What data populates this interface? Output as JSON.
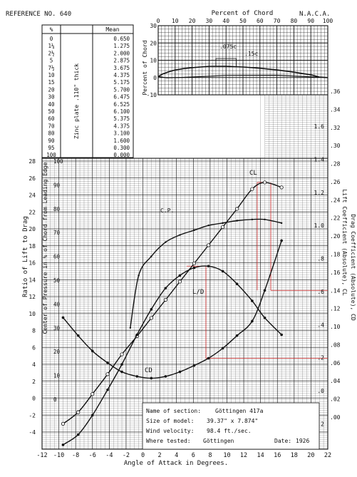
{
  "header": {
    "reference": "REFERENCE NO. 640",
    "agency": "N.A.C.A.",
    "profile_axis_title": "Percent of Chord",
    "profile_ylabel": "Percent of Chord"
  },
  "section_table": {
    "col_station": "%",
    "col_mean": "Mean",
    "stations": [
      "0",
      "1¼",
      "2½",
      "5",
      "7½",
      "10",
      "15",
      "20",
      "30",
      "40",
      "50",
      "60",
      "70",
      "80",
      "90",
      "95",
      "100"
    ],
    "means": [
      "0.650",
      "1.275",
      "2.000",
      "2.875",
      "3.675",
      "4.375",
      "5.175",
      "5.700",
      "6.475",
      "6.525",
      "6.100",
      "5.375",
      "4.375",
      "3.100",
      "1.600",
      "0.300",
      "0.000"
    ],
    "note": "Zinc plate .110\" thick"
  },
  "profile_annotations": {
    "thickness_1": ".075c",
    "thickness_2": ".15c"
  },
  "axis_titles": {
    "x": "Angle of Attack in Degrees.",
    "left_outer": "Ratio of Lift to Drag",
    "left_inner": "Center of Pressure in % of Chord from Leading Edge",
    "right_cl": "Lift Coefficient (Absolute), CL",
    "right_cd": "Drag Coefficient (Absolute), CD"
  },
  "curve_labels": {
    "cl": "CL",
    "cp": "C.P.",
    "ld": "L/D",
    "cd": "CD"
  },
  "info_box": {
    "name_label": "Name of section:",
    "name_value": "Göttingen 417a",
    "model_label": "Size of model:",
    "model_value": "39.37\" x 7.874\"",
    "wind_label": "Wind velocity:",
    "wind_value": "98.4 ft./sec.",
    "tested_label": "Where tested:",
    "tested_value": "Göttingen",
    "date_label": "Date:",
    "date_value": "1926"
  },
  "chart_data": [
    {
      "type": "line",
      "title": "Percent of Chord",
      "xlabel": "Percent of Chord",
      "ylabel": "Percent of Chord",
      "xlim": [
        0,
        100
      ],
      "ylim": [
        -10,
        30
      ],
      "x_ticks": [
        0,
        10,
        20,
        30,
        40,
        50,
        60,
        70,
        80,
        90,
        100
      ],
      "y_ticks": [
        -10,
        0,
        10,
        20,
        30
      ],
      "series": [
        {
          "x": [
            0,
            1.25,
            2.5,
            5,
            7.5,
            10,
            15,
            20,
            30,
            40,
            50,
            60,
            70,
            80,
            90,
            95,
            100
          ],
          "y": [
            0.65,
            1.275,
            2.0,
            2.875,
            3.675,
            4.375,
            5.175,
            5.7,
            6.475,
            6.525,
            6.1,
            5.375,
            4.375,
            3.1,
            1.6,
            0.3,
            0.0
          ]
        }
      ]
    },
    {
      "type": "line",
      "xlabel": "Angle of Attack in Degrees.",
      "xlim": [
        -12,
        22
      ],
      "x_ticks": [
        -12,
        -10,
        -8,
        -6,
        -4,
        -2,
        0,
        2,
        4,
        6,
        8,
        10,
        12,
        14,
        16,
        18,
        20,
        22
      ],
      "ld_axis": {
        "label": "Ratio of Lift to Drag",
        "lim": [
          -6,
          28
        ],
        "ticks": [
          -4,
          -2,
          0,
          2,
          4,
          6,
          8,
          10,
          12,
          14,
          16,
          18,
          20,
          22,
          24,
          26,
          28
        ]
      },
      "cp_axis": {
        "label": "Center of Pressure in % of Chord from Leading Edge",
        "lim": [
          0,
          100
        ],
        "ticks": [
          0,
          10,
          20,
          30,
          40,
          50,
          60,
          70,
          80,
          90,
          100
        ]
      },
      "cl_axis": {
        "label": "Lift Coefficient (Absolute), CL",
        "lim": [
          -0.2,
          1.8
        ],
        "ticks": [
          -0.2,
          0,
          0.2,
          0.4,
          0.6,
          0.8,
          1.0,
          1.2,
          1.4,
          1.6
        ]
      },
      "cd_axis": {
        "label": "Drag Coefficient (Absolute), CD",
        "lim": [
          0,
          0.36
        ],
        "ticks": [
          0,
          0.02,
          0.04,
          0.06,
          0.08,
          0.1,
          0.12,
          0.14,
          0.16,
          0.18,
          0.2,
          0.22,
          0.24,
          0.26,
          0.28,
          0.3,
          0.32,
          0.34,
          0.36
        ]
      },
      "series": [
        {
          "name": "CL",
          "axis": "cl",
          "x": [
            -9.5,
            -7.7,
            -6,
            -4.2,
            -2.5,
            -0.7,
            1,
            2.7,
            4.4,
            6.1,
            7.8,
            9.5,
            11.2,
            13,
            14.5,
            16.5
          ],
          "y": [
            -0.2,
            -0.13,
            -0.02,
            0.1,
            0.22,
            0.33,
            0.44,
            0.55,
            0.66,
            0.77,
            0.88,
            0.99,
            1.1,
            1.22,
            1.26,
            1.23
          ]
        },
        {
          "name": "C.P.",
          "axis": "cp",
          "x": [
            -1.5,
            -0.5,
            1,
            2.7,
            4.4,
            6.1,
            7.8,
            9.5,
            11.2,
            13,
            14.5,
            16.5
          ],
          "y": [
            30,
            52,
            60,
            66,
            69,
            71,
            73,
            74,
            75,
            75.5,
            75.5,
            74
          ]
        },
        {
          "name": "L/D",
          "axis": "ld",
          "x": [
            -9.5,
            -7.7,
            -6,
            -4.2,
            -2.5,
            -0.7,
            1,
            2.7,
            4.4,
            6.1,
            7.8,
            9.5,
            11.2,
            13,
            14.5,
            16.5
          ],
          "y": [
            -5.5,
            -4.3,
            -2,
            1,
            4,
            7.5,
            10.5,
            13,
            14.5,
            15.4,
            15.6,
            15,
            13.5,
            11.5,
            9.5,
            7.5
          ]
        },
        {
          "name": "CD",
          "axis": "cd",
          "x": [
            -9.5,
            -7.7,
            -6,
            -4.2,
            -2.5,
            -0.7,
            1,
            2.7,
            4.4,
            6.1,
            7.8,
            9.5,
            11.2,
            13,
            14.5,
            16.5
          ],
          "y": [
            0.11,
            0.09,
            0.073,
            0.06,
            0.05,
            0.045,
            0.043,
            0.045,
            0.05,
            0.057,
            0.065,
            0.076,
            0.09,
            0.106,
            0.14,
            0.195
          ]
        }
      ]
    }
  ]
}
